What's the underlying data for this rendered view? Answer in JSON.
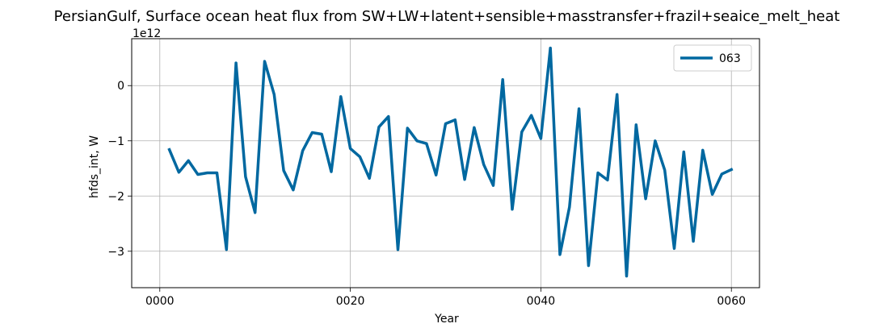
{
  "chart_data": {
    "type": "line",
    "title": "PersianGulf, Surface ocean heat flux from SW+LW+latent+sensible+masstransfer+frazil+seaice_melt_heat",
    "xlabel": "Year",
    "ylabel": "hfds_int, W",
    "offset_text": "1e12",
    "xlim": [
      -2.95,
      62.95
    ],
    "ylim": [
      -3.66,
      0.85
    ],
    "x_ticks": [
      0,
      20,
      40,
      60
    ],
    "x_tick_labels": [
      "0000",
      "0020",
      "0040",
      "0060"
    ],
    "y_ticks": [
      -3,
      -2,
      -1,
      0
    ],
    "y_tick_labels": [
      "−3",
      "−2",
      "−1",
      "0"
    ],
    "grid": true,
    "legend_position": "upper-right",
    "color": "#0068a0",
    "series": [
      {
        "name": "063",
        "x": [
          1,
          2,
          3,
          4,
          5,
          6,
          7,
          8,
          9,
          10,
          11,
          12,
          13,
          14,
          15,
          16,
          17,
          18,
          19,
          20,
          21,
          22,
          23,
          24,
          25,
          26,
          27,
          28,
          29,
          30,
          31,
          32,
          33,
          34,
          35,
          36,
          37,
          38,
          39,
          40,
          41,
          42,
          43,
          44,
          45,
          46,
          47,
          48,
          49,
          50,
          51,
          52,
          53,
          54,
          55,
          56,
          57,
          58,
          59,
          60
        ],
        "values": [
          -1.16,
          -1.57,
          -1.36,
          -1.61,
          -1.58,
          -1.58,
          -2.97,
          0.41,
          -1.65,
          -2.3,
          0.44,
          -0.16,
          -1.54,
          -1.89,
          -1.18,
          -0.85,
          -0.88,
          -1.56,
          -0.2,
          -1.14,
          -1.29,
          -1.68,
          -0.75,
          -0.56,
          -2.97,
          -0.77,
          -1.0,
          -1.05,
          -1.62,
          -0.69,
          -0.62,
          -1.7,
          -0.76,
          -1.43,
          -1.81,
          0.11,
          -2.24,
          -0.84,
          -0.54,
          -0.96,
          0.68,
          -3.06,
          -2.2,
          -0.42,
          -3.26,
          -1.58,
          -1.71,
          -0.16,
          -3.45,
          -0.71,
          -2.05,
          -1.0,
          -1.53,
          -2.95,
          -1.2,
          -2.82,
          -1.17,
          -1.97,
          -1.6,
          -1.52
        ]
      }
    ]
  }
}
